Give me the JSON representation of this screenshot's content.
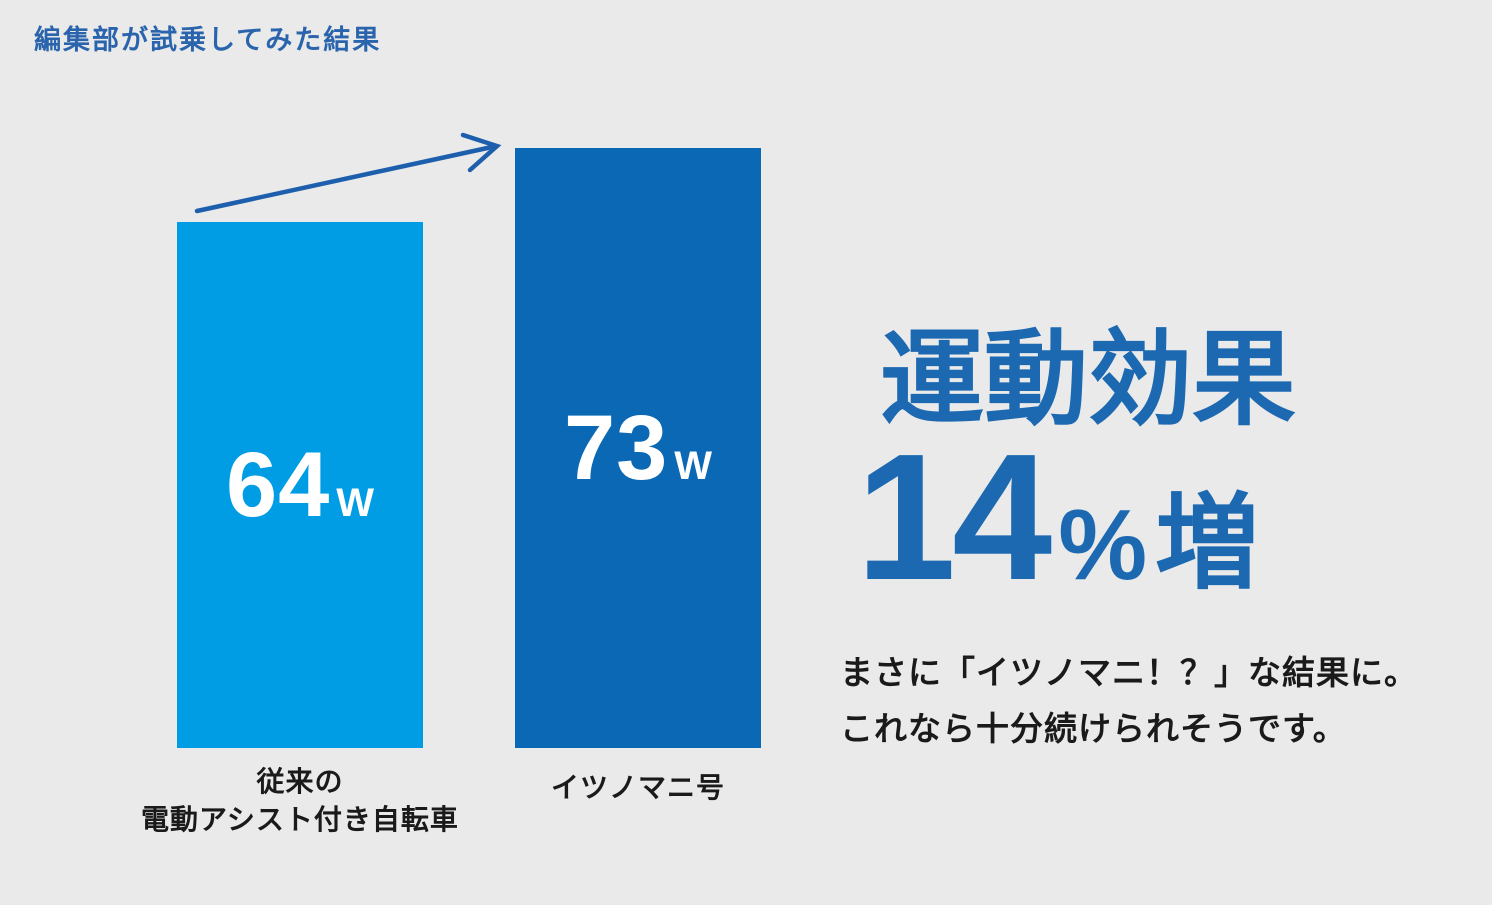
{
  "colors": {
    "background": "#e9eae9",
    "header_blue": "#2a64ad",
    "accent_blue": "#1c69b2",
    "bar1": "#009de4",
    "bar2": "#0a68b4",
    "arrow_blue": "#1e5fad",
    "text_dark": "#1a1a1a",
    "bar_value_text": "#ffffff"
  },
  "header": {
    "title": "編集部が試乗してみた結果"
  },
  "chart_data": {
    "type": "bar",
    "title": "編集部が試乗してみた結果",
    "categories": [
      "従来の電動アシスト付き自転車",
      "イツノマニ号"
    ],
    "values": [
      64,
      73
    ],
    "unit": "W",
    "data_labels": [
      "64W",
      "73W"
    ],
    "bar_colors": [
      "#009de4",
      "#0a68b4"
    ],
    "ylim": [
      0,
      73
    ],
    "grid": false,
    "legend_position": "none",
    "annotations": [
      "運動効果 14%増",
      "まさに「イツノマニ！？」な結果に。これなら十分続けられそうです。"
    ]
  },
  "bars": [
    {
      "value": "64",
      "unit": "W",
      "label_line1": "従来の",
      "label_line2": "電動アシスト付き自転車"
    },
    {
      "value": "73",
      "unit": "W",
      "label_line1": "イツノマニ号"
    }
  ],
  "result": {
    "headline": "運動効果",
    "big_number": "14",
    "percent_sign": "%",
    "suffix": "増",
    "caption_line1": "まさに「イツノマニ！？」な結果に。",
    "caption_line2": "これなら十分続けられそうです。"
  }
}
